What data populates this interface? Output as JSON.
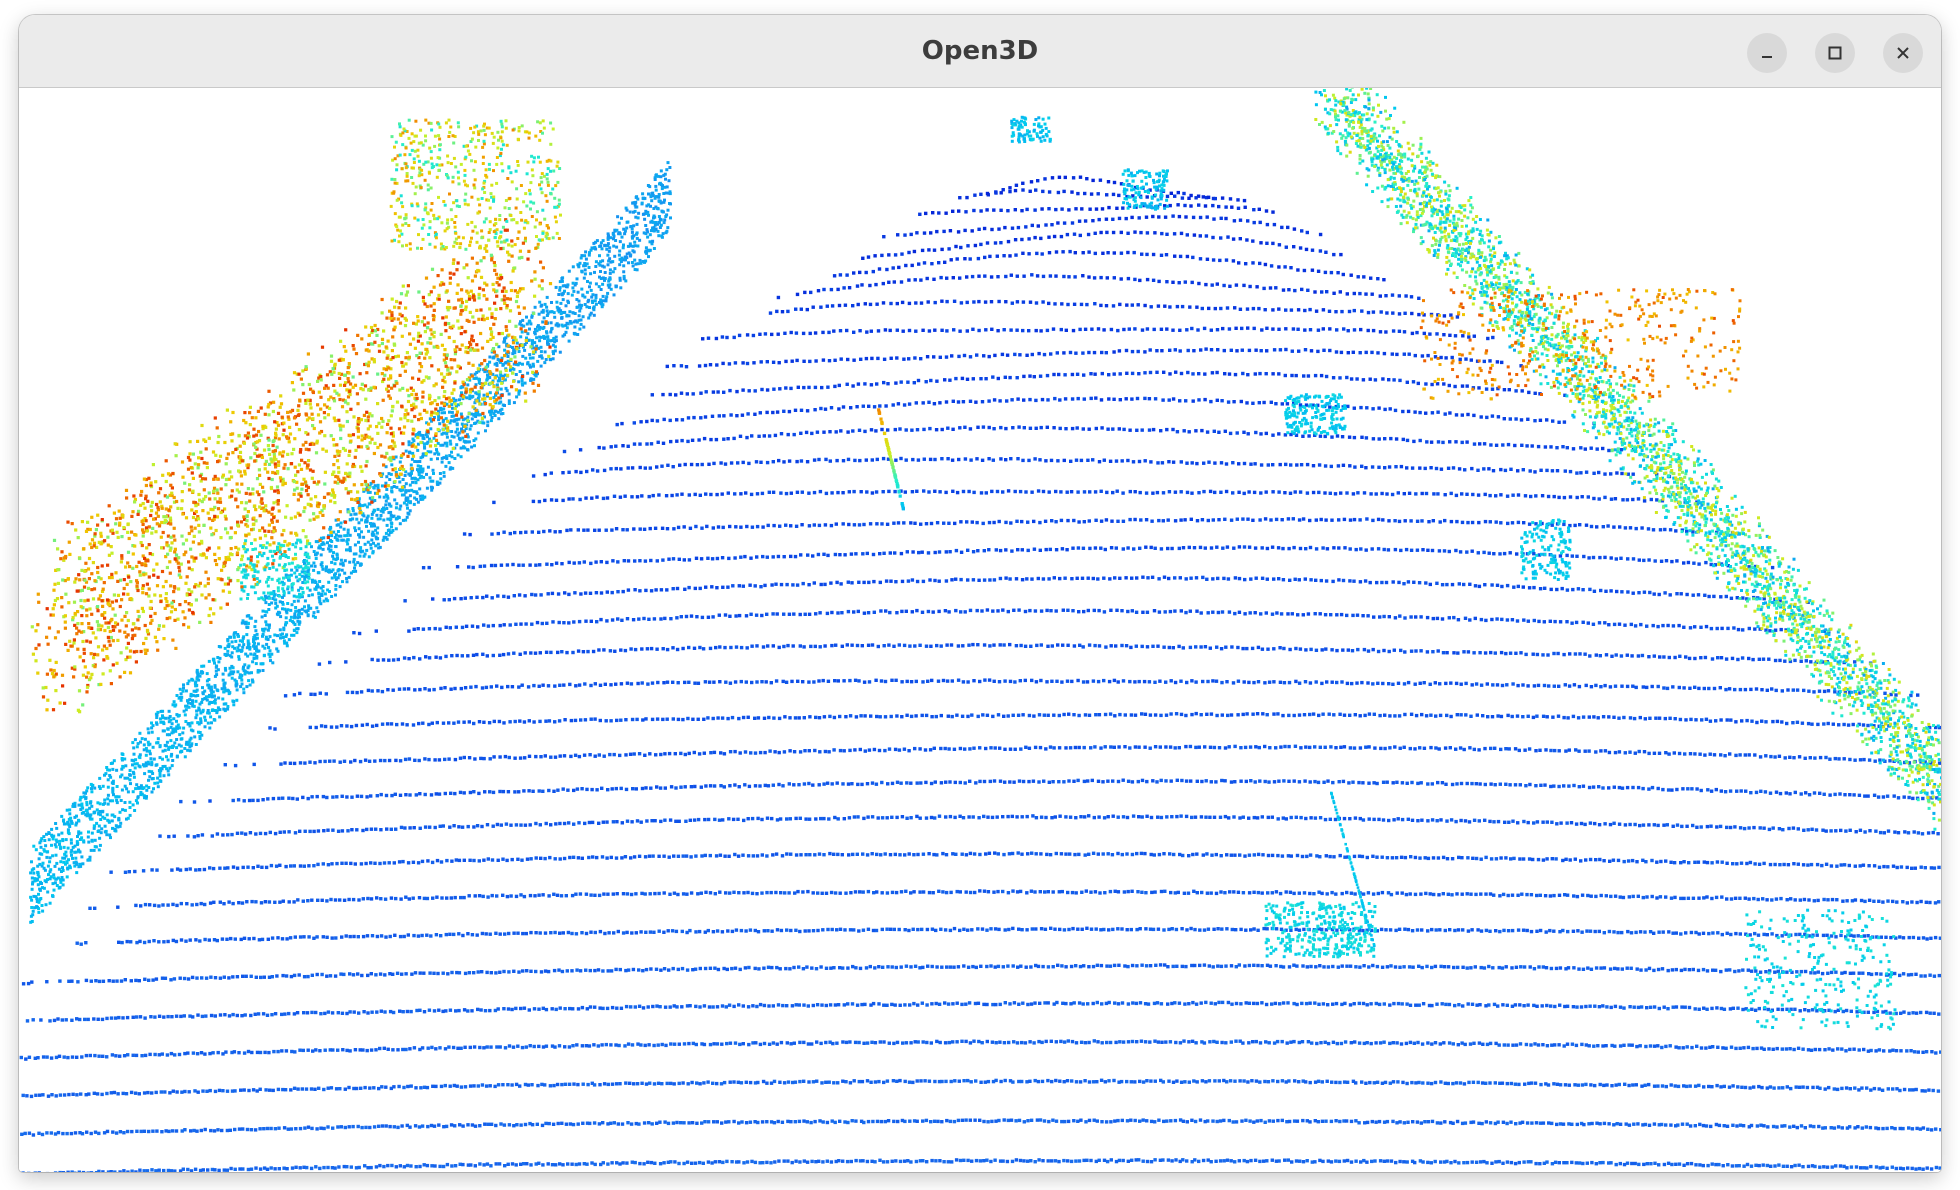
{
  "window": {
    "title": "Open3D",
    "controls": {
      "minimize_icon": "minimize-icon",
      "maximize_icon": "maximize-icon",
      "close_icon": "close-icon"
    }
  },
  "viewport": {
    "background": "#ffffff",
    "colormap": [
      "#0000c8",
      "#0a46e6",
      "#1e7cf0",
      "#00c8f0",
      "#28f0c8",
      "#c8f028",
      "#f0c800",
      "#f07800",
      "#e63200"
    ]
  }
}
